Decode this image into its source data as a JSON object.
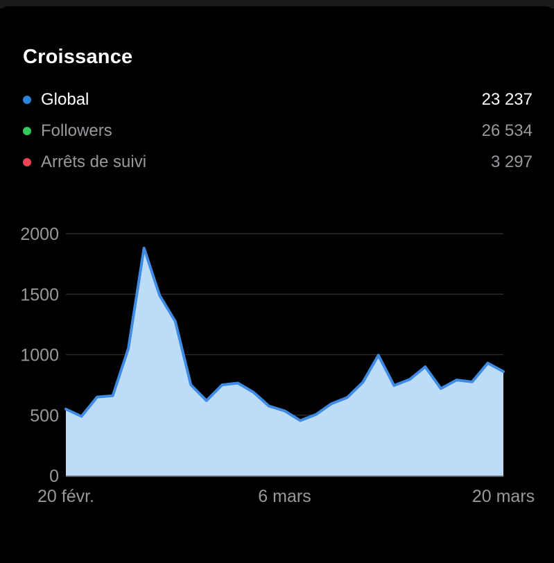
{
  "header": {
    "title": "Croissance"
  },
  "legend": {
    "items": [
      {
        "label": "Global",
        "value": "23 237",
        "color": "#2e82d9",
        "active": true
      },
      {
        "label": "Followers",
        "value": "26 534",
        "color": "#35c75a",
        "active": false
      },
      {
        "label": "Arrêts de suivi",
        "value": "3 297",
        "color": "#ee4451",
        "active": false
      }
    ]
  },
  "chart_data": {
    "type": "area",
    "title": "Croissance",
    "series_name": "Global",
    "x_start": "20 févr.",
    "x_end": "20 mars",
    "values": [
      550,
      490,
      650,
      660,
      1050,
      1880,
      1490,
      1275,
      750,
      620,
      750,
      765,
      690,
      575,
      535,
      455,
      505,
      595,
      645,
      770,
      995,
      745,
      795,
      900,
      720,
      790,
      775,
      930,
      860
    ],
    "x_tick_labels": [
      "20 févr.",
      "6 mars",
      "20 mars"
    ],
    "x_tick_positions": [
      0,
      14,
      28
    ],
    "y_ticks": [
      0,
      500,
      1000,
      1500,
      2000
    ],
    "ylim": [
      0,
      2000
    ],
    "grid": true,
    "legend_position": "top-left",
    "colors": {
      "line": "#3f8be4",
      "fill": "#bcdcf8",
      "grid": "#2b2b2d",
      "axis": "#585961",
      "tick_text": "#98989e"
    }
  }
}
